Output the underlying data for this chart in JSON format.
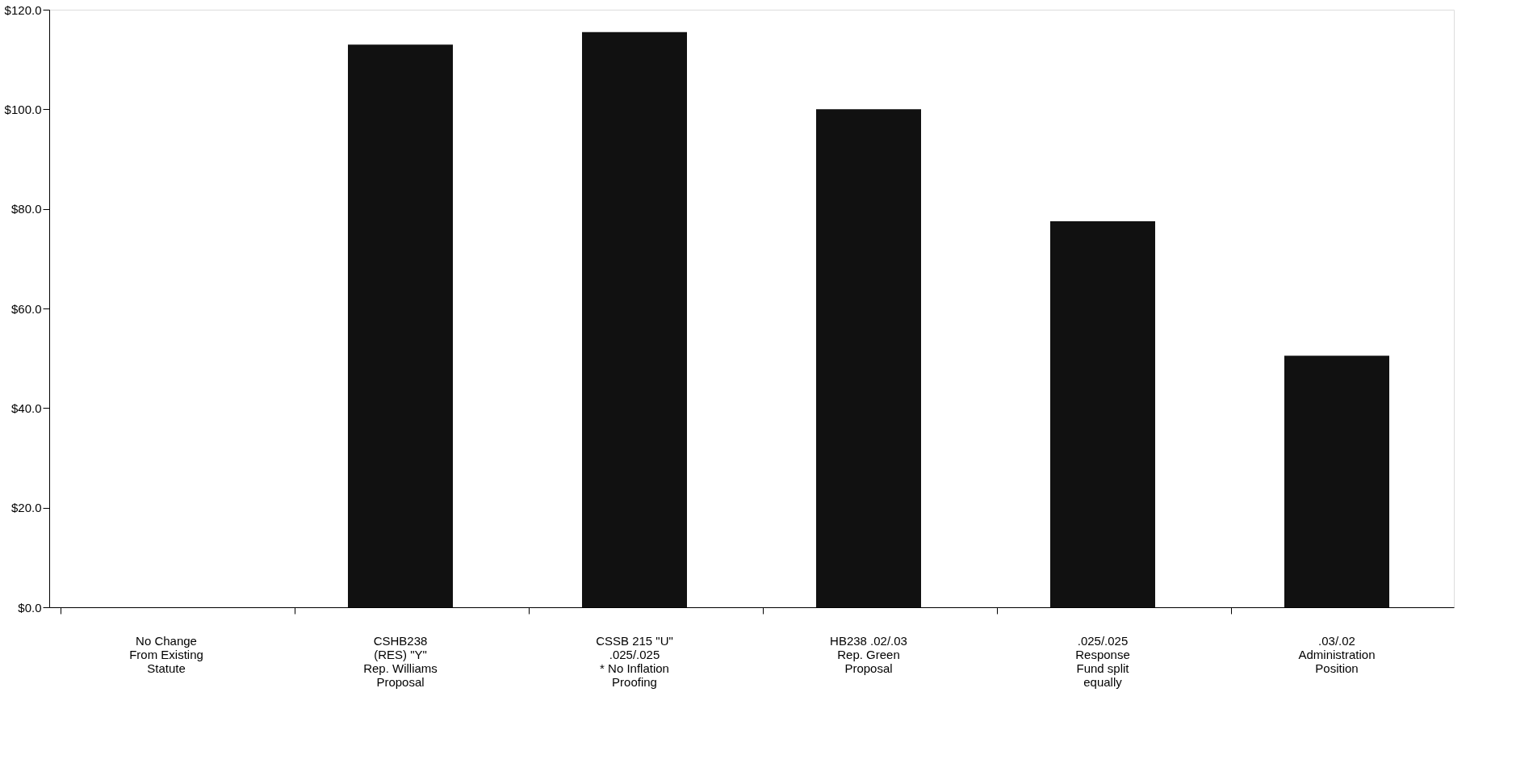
{
  "chart_data": {
    "type": "bar",
    "categories": [
      "No Change\nFrom Existing\nStatute",
      "CSHB238\n(RES)  \"Y\"\nRep. Williams\nProposal",
      "CSSB 215 \"U\"\n.025/.025\n* No Inflation\nProofing",
      "HB238 .02/.03\nRep. Green\nProposal",
      ".025/.025\nResponse\nFund split\nequally",
      ".03/.02\nAdministration\nPosition"
    ],
    "values": [
      0,
      113,
      115.5,
      100,
      77.5,
      50.5
    ],
    "color": "#111111",
    "ylim": [
      0,
      120
    ],
    "yticks": [
      {
        "value": 0,
        "label": "$0.0"
      },
      {
        "value": 20,
        "label": "$20.0"
      },
      {
        "value": 40,
        "label": "$40.0"
      },
      {
        "value": 60,
        "label": "$60.0"
      },
      {
        "value": 80,
        "label": "$80.0"
      },
      {
        "value": 100,
        "label": "$100.0"
      },
      {
        "value": 120,
        "label": "$120.0"
      }
    ],
    "grid": false
  }
}
